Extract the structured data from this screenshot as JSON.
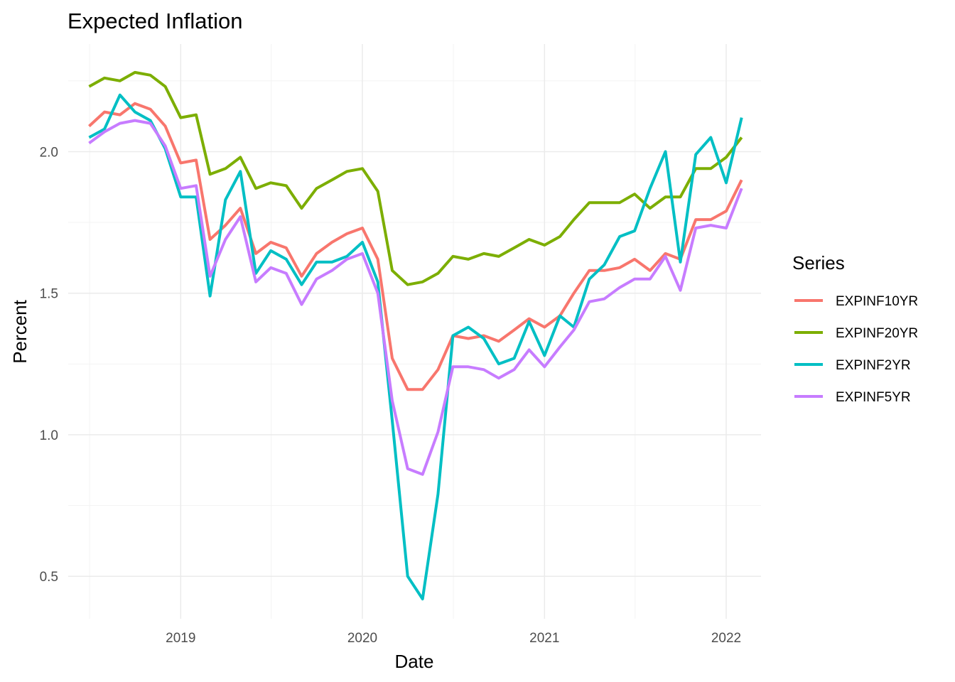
{
  "chart_data": {
    "type": "line",
    "title": "Expected Inflation",
    "xlabel": "Date",
    "ylabel": "Percent",
    "legend_title": "Series",
    "legend_position": "right",
    "grid": true,
    "x_ticks": [
      "2019",
      "2020",
      "2021",
      "2022"
    ],
    "y_ticks": [
      "0.5",
      "1.0",
      "1.5",
      "2.0"
    ],
    "xlim": [
      "2018-05-20",
      "2022-03-12"
    ],
    "ylim": [
      0.35,
      2.38
    ],
    "x": [
      "2018-07-01",
      "2018-08-01",
      "2018-09-01",
      "2018-10-01",
      "2018-11-01",
      "2018-12-01",
      "2019-01-01",
      "2019-02-01",
      "2019-03-01",
      "2019-04-01",
      "2019-05-01",
      "2019-06-01",
      "2019-07-01",
      "2019-08-01",
      "2019-09-01",
      "2019-10-01",
      "2019-11-01",
      "2019-12-01",
      "2020-01-01",
      "2020-02-01",
      "2020-03-01",
      "2020-04-01",
      "2020-05-01",
      "2020-06-01",
      "2020-07-01",
      "2020-08-01",
      "2020-09-01",
      "2020-10-01",
      "2020-11-01",
      "2020-12-01",
      "2021-01-01",
      "2021-02-01",
      "2021-03-01",
      "2021-04-01",
      "2021-05-01",
      "2021-06-01",
      "2021-07-01",
      "2021-08-01",
      "2021-09-01",
      "2021-10-01",
      "2021-11-01",
      "2021-12-01",
      "2022-01-01",
      "2022-02-01"
    ],
    "series": [
      {
        "name": "EXPINF10YR",
        "color": "#F8766D",
        "values": [
          2.09,
          2.14,
          2.13,
          2.17,
          2.15,
          2.09,
          1.96,
          1.97,
          1.69,
          1.74,
          1.8,
          1.64,
          1.68,
          1.66,
          1.56,
          1.64,
          1.68,
          1.71,
          1.73,
          1.62,
          1.27,
          1.16,
          1.16,
          1.23,
          1.35,
          1.34,
          1.35,
          1.33,
          1.37,
          1.41,
          1.38,
          1.42,
          1.5,
          1.58,
          1.58,
          1.59,
          1.62,
          1.58,
          1.64,
          1.62,
          1.76,
          1.76,
          1.79,
          1.9
        ]
      },
      {
        "name": "EXPINF20YR",
        "color": "#7CAE00",
        "values": [
          2.23,
          2.26,
          2.25,
          2.28,
          2.27,
          2.23,
          2.12,
          2.13,
          1.92,
          1.94,
          1.98,
          1.87,
          1.89,
          1.88,
          1.8,
          1.87,
          1.9,
          1.93,
          1.94,
          1.86,
          1.58,
          1.53,
          1.54,
          1.57,
          1.63,
          1.62,
          1.64,
          1.63,
          1.66,
          1.69,
          1.67,
          1.7,
          1.76,
          1.82,
          1.82,
          1.82,
          1.85,
          1.8,
          1.84,
          1.84,
          1.94,
          1.94,
          1.98,
          2.05
        ]
      },
      {
        "name": "EXPINF2YR",
        "color": "#00BFC4",
        "values": [
          2.05,
          2.08,
          2.2,
          2.14,
          2.11,
          2.01,
          1.84,
          1.84,
          1.49,
          1.83,
          1.93,
          1.57,
          1.65,
          1.62,
          1.53,
          1.61,
          1.61,
          1.63,
          1.68,
          1.54,
          1.05,
          0.5,
          0.42,
          0.79,
          1.35,
          1.38,
          1.34,
          1.25,
          1.27,
          1.4,
          1.28,
          1.42,
          1.38,
          1.55,
          1.6,
          1.7,
          1.72,
          1.87,
          2.0,
          1.61,
          1.99,
          2.05,
          1.89,
          2.12
        ]
      },
      {
        "name": "EXPINF5YR",
        "color": "#C77CFF",
        "values": [
          2.03,
          2.07,
          2.1,
          2.11,
          2.1,
          2.02,
          1.87,
          1.88,
          1.56,
          1.69,
          1.77,
          1.54,
          1.59,
          1.57,
          1.46,
          1.55,
          1.58,
          1.62,
          1.64,
          1.5,
          1.12,
          0.88,
          0.86,
          1.01,
          1.24,
          1.24,
          1.23,
          1.2,
          1.23,
          1.3,
          1.24,
          1.31,
          1.37,
          1.47,
          1.48,
          1.52,
          1.55,
          1.55,
          1.63,
          1.51,
          1.73,
          1.74,
          1.73,
          1.87
        ]
      }
    ]
  }
}
